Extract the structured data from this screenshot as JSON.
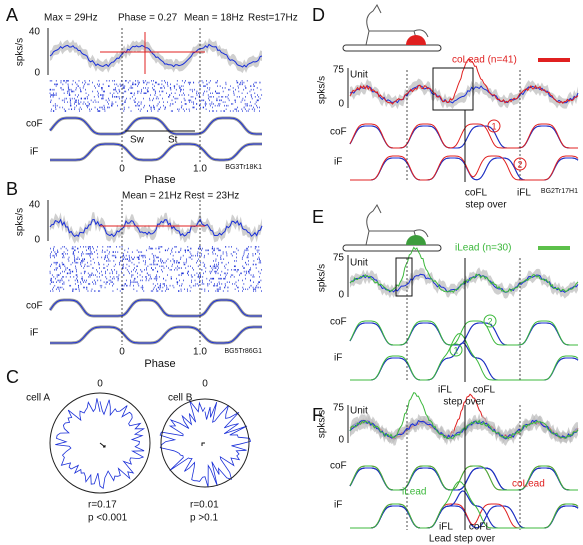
{
  "panels": {
    "A": {
      "letter": "A",
      "stats": [
        "Max = 29Hz",
        "Phase = 0.27",
        "Mean = 18Hz",
        "Rest=17Hz"
      ],
      "ylabel": "spks/s",
      "yticks": [
        40,
        0
      ],
      "rows": [
        "coF",
        "iF"
      ],
      "annotations": [
        "Sw",
        "St"
      ],
      "xticks": [
        0,
        "1.0"
      ],
      "xlabel": "Phase",
      "cell_id": "BG3Tr18K1"
    },
    "B": {
      "letter": "B",
      "stats": [
        "Mean = 21Hz",
        "Rest = 23Hz"
      ],
      "ylabel": "spks/s",
      "yticks": [
        40,
        0
      ],
      "rows": [
        "coF",
        "iF"
      ],
      "xticks": [
        0,
        "1.0"
      ],
      "xlabel": "Phase",
      "cell_id": "BG5Tr86G1"
    },
    "C": {
      "letter": "C",
      "cells": [
        {
          "name": "cell A",
          "zero": 0,
          "r": "r=0.17",
          "p": "p <0.001"
        },
        {
          "name": "cell B",
          "zero": 0,
          "r": "r=0.01",
          "p": "p >0.1"
        }
      ]
    },
    "D": {
      "letter": "D",
      "legend": "coLead (n=41)",
      "unit": "Unit",
      "ylabel": "spks/s",
      "yticks": [
        75,
        0
      ],
      "rows": [
        "coF",
        "iF"
      ],
      "markers": [
        "1",
        "2"
      ],
      "bottom": [
        "coFL",
        "iFL",
        "step over"
      ],
      "cell_id": "BG2Tr17H1"
    },
    "E": {
      "letter": "E",
      "legend": "iLead (n=30)",
      "unit": "Unit",
      "ylabel": "spks/s",
      "yticks": [
        75,
        0
      ],
      "rows": [
        "coF",
        "iF"
      ],
      "markers": [
        "2",
        "1"
      ],
      "bottom": [
        "iFL",
        "coFL",
        "step over"
      ]
    },
    "F": {
      "letter": "F",
      "unit": "Unit",
      "ylabel": "spks/s",
      "yticks": [
        75,
        0
      ],
      "rows": [
        "coF",
        "iF"
      ],
      "labels": [
        "coLead",
        "iLead"
      ],
      "bottom": [
        "iFL",
        "coFL",
        "Lead step over"
      ]
    }
  }
}
